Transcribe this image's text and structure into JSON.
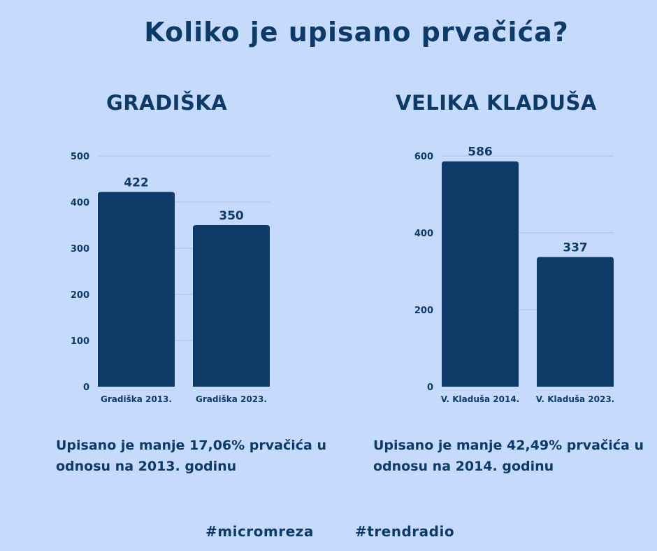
{
  "title": "Koliko je upisano prvačića?",
  "chart_data": [
    {
      "type": "bar",
      "title": "GRADIŠKA",
      "categories": [
        "Gradiška 2013.",
        "Gradiška 2023."
      ],
      "values": [
        422,
        350
      ],
      "ylim": [
        0,
        500
      ],
      "yticks": [
        0,
        100,
        200,
        300,
        400,
        500
      ],
      "color": "#0d3a67",
      "note": "Upisano je manje 17,06% prvačića u odnosu na 2013. godinu"
    },
    {
      "type": "bar",
      "title": "VELIKA KLADUŠA",
      "categories": [
        "V. Kladuša 2014.",
        "V. Kladuša 2023."
      ],
      "values": [
        586,
        337
      ],
      "ylim": [
        0,
        600
      ],
      "yticks": [
        0,
        200,
        400,
        600
      ],
      "color": "#0d3a67",
      "note": "Upisano je manje 42,49% prvačića u odnosu na 2014. godinu"
    }
  ],
  "hashtags": [
    "#micromreza",
    "#trendradio"
  ]
}
